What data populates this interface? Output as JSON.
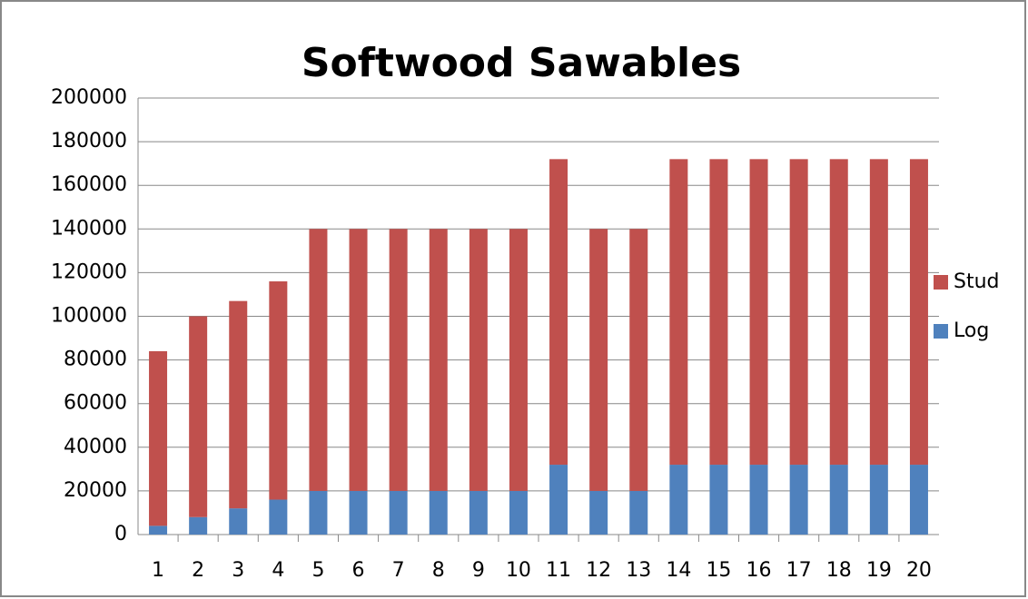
{
  "chart_data": {
    "type": "stacked_bar",
    "title": "Softwood Sawables",
    "categories": [
      "1",
      "2",
      "3",
      "4",
      "5",
      "6",
      "7",
      "8",
      "9",
      "10",
      "11",
      "12",
      "13",
      "14",
      "15",
      "16",
      "17",
      "18",
      "19",
      "20"
    ],
    "series": [
      {
        "name": "Log",
        "color": "#4f81bd",
        "values": [
          4000,
          8000,
          12000,
          16000,
          20000,
          20000,
          20000,
          20000,
          20000,
          20000,
          32000,
          20000,
          20000,
          32000,
          32000,
          32000,
          32000,
          32000,
          32000,
          32000
        ]
      },
      {
        "name": "Stud",
        "color": "#c0504d",
        "values": [
          80000,
          92000,
          95000,
          100000,
          120000,
          120000,
          120000,
          120000,
          120000,
          120000,
          140000,
          120000,
          120000,
          140000,
          140000,
          140000,
          140000,
          140000,
          140000,
          140000
        ]
      }
    ],
    "ylim": [
      0,
      200000
    ],
    "yticks": [
      0,
      20000,
      40000,
      60000,
      80000,
      100000,
      120000,
      140000,
      160000,
      180000,
      200000
    ],
    "grid": true,
    "legend": "right"
  }
}
